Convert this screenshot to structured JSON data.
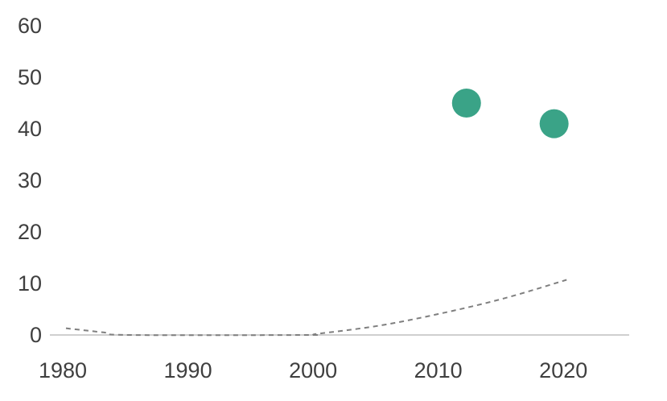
{
  "chart_data": {
    "type": "scatter",
    "title": "",
    "xlabel": "",
    "ylabel": "",
    "xlim": [
      1980,
      2025
    ],
    "ylim": [
      0,
      60
    ],
    "x_ticks": [
      1980,
      1990,
      2000,
      2010,
      2020
    ],
    "y_ticks": [
      0,
      10,
      20,
      30,
      40,
      50,
      60
    ],
    "x_tick_labels": [
      "1980",
      "1990",
      "2000",
      "2010",
      "2020"
    ],
    "y_tick_labels": [
      "0",
      "10",
      "20",
      "30",
      "40",
      "50",
      "60"
    ],
    "grid": false,
    "legend": "none",
    "series": [
      {
        "points": [
          {
            "x": 2012,
            "y": 45
          },
          {
            "x": 2019,
            "y": 41
          }
        ],
        "color": "#3aa387"
      }
    ],
    "trendline": {
      "style": "dashed",
      "color": "#7f7f7f",
      "points": [
        {
          "x": 1980,
          "y": 1.3
        },
        {
          "x": 1983,
          "y": 0.5
        },
        {
          "x": 1985,
          "y": 0
        },
        {
          "x": 1999,
          "y": 0
        },
        {
          "x": 2000,
          "y": 0.2
        },
        {
          "x": 2005,
          "y": 1.8
        },
        {
          "x": 2010,
          "y": 4.2
        },
        {
          "x": 2015,
          "y": 7.1
        },
        {
          "x": 2020,
          "y": 10.7
        }
      ]
    },
    "axis_color": "#bfbfbf"
  }
}
